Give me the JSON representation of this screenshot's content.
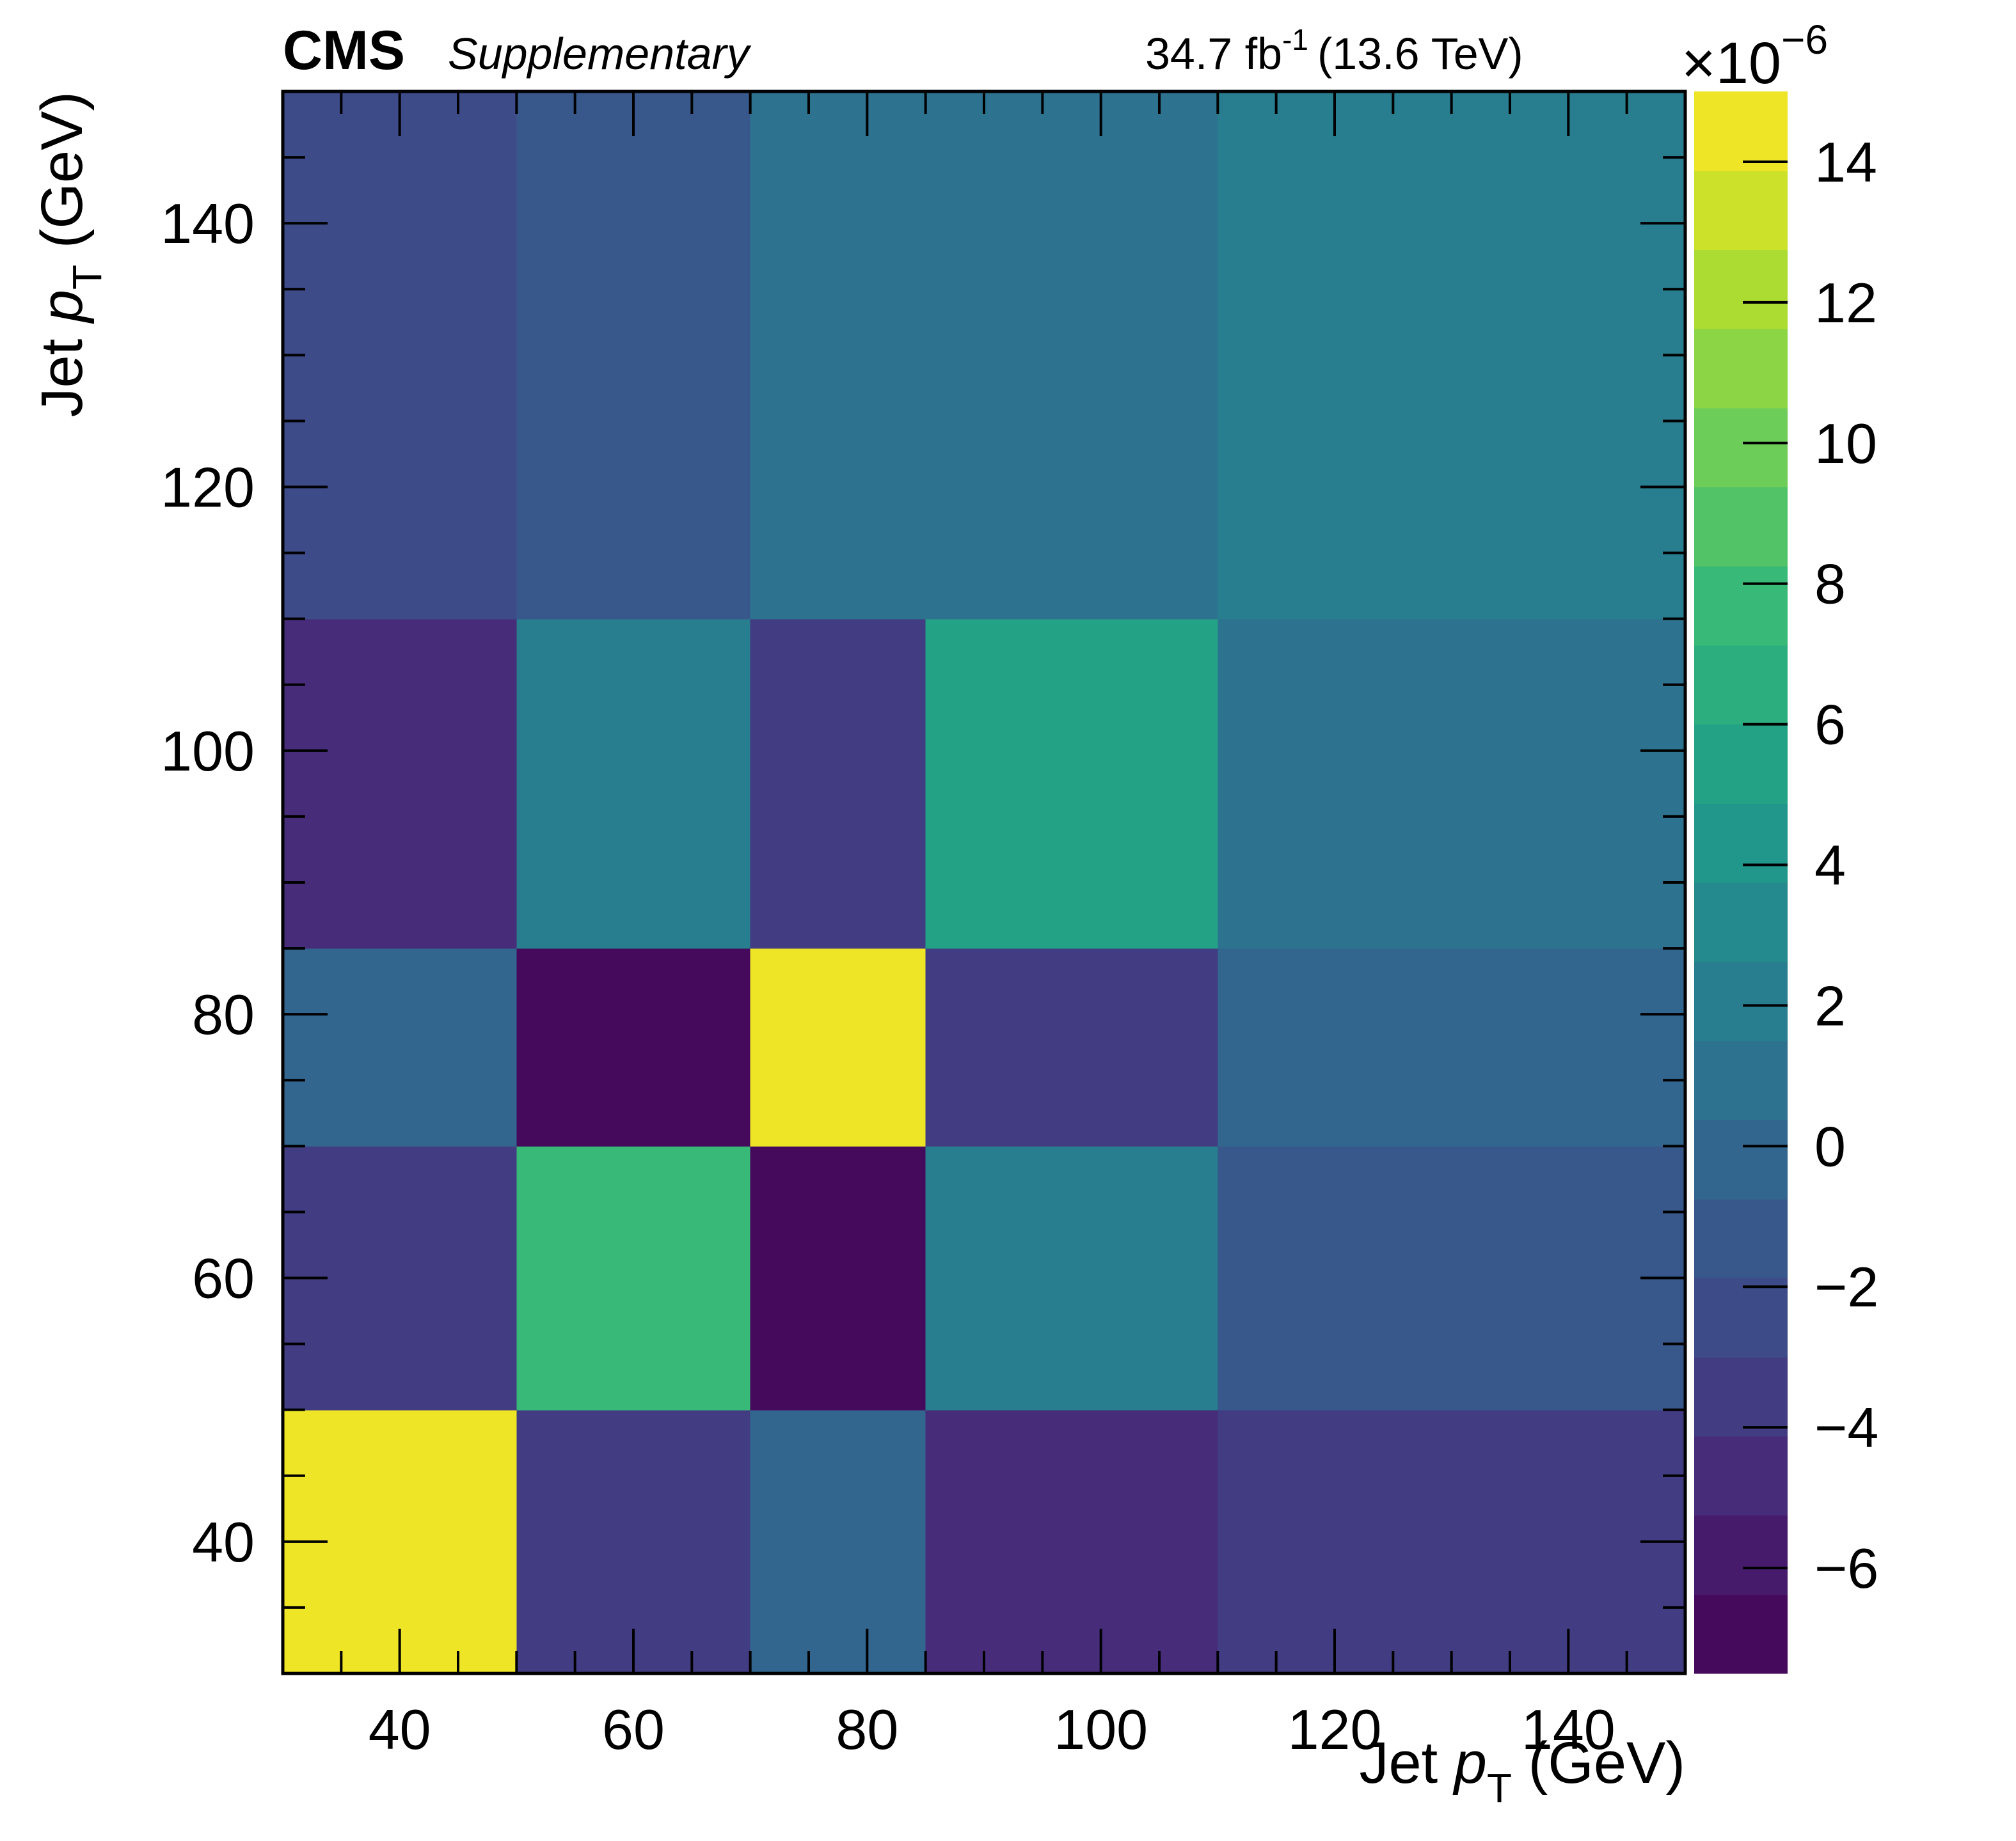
{
  "header": {
    "experiment": "CMS",
    "qualifier": "Supplementary",
    "lumi_value": "34.7 fb",
    "lumi_exp": "-1",
    "energy": "(13.6 TeV)"
  },
  "chart_data": {
    "type": "heatmap",
    "title": "",
    "xlabel": {
      "prefix": "Jet ",
      "var": "p",
      "sub": "T",
      "suffix": " (GeV)"
    },
    "ylabel": {
      "prefix": "Jet ",
      "var": "p",
      "sub": "T",
      "suffix": " (GeV)"
    },
    "x_bins": [
      30,
      50,
      70,
      85,
      110,
      150
    ],
    "y_bins": [
      30,
      50,
      70,
      85,
      110,
      150
    ],
    "xlim": [
      30,
      150
    ],
    "ylim": [
      30,
      150
    ],
    "x_ticks": [
      40,
      60,
      80,
      100,
      120,
      140
    ],
    "y_ticks": [
      40,
      60,
      80,
      100,
      120,
      140
    ],
    "grid": false,
    "z_unit": "1e-6",
    "z_range": [
      -7.5,
      15
    ],
    "values": [
      [
        15.0,
        -3.8,
        0.0,
        -4.8,
        -3.2
      ],
      [
        -3.5,
        8.0,
        -7.0,
        1.8,
        -1.3
      ],
      [
        0.0,
        -7.0,
        15.0,
        -3.5,
        0.3
      ],
      [
        -5.0,
        1.8,
        -3.5,
        5.0,
        0.5
      ],
      [
        -2.5,
        -1.0,
        0.5,
        0.5,
        1.5
      ]
    ],
    "colorbar": {
      "multiplier_base": "×10",
      "multiplier_exp": "−6",
      "ticks": [
        14,
        12,
        10,
        8,
        6,
        4,
        2,
        0,
        -2,
        -4,
        -6
      ],
      "tick_labels": [
        "14",
        "12",
        "10",
        "8",
        "6",
        "4",
        "2",
        "0",
        "−2",
        "−4",
        "−6"
      ],
      "levels": 20,
      "palette": [
        "#440154",
        "#482878",
        "#3e4a89",
        "#31688e",
        "#26828e",
        "#1f9e89",
        "#35b779",
        "#6ece58",
        "#b5de2b",
        "#fde725"
      ]
    }
  }
}
